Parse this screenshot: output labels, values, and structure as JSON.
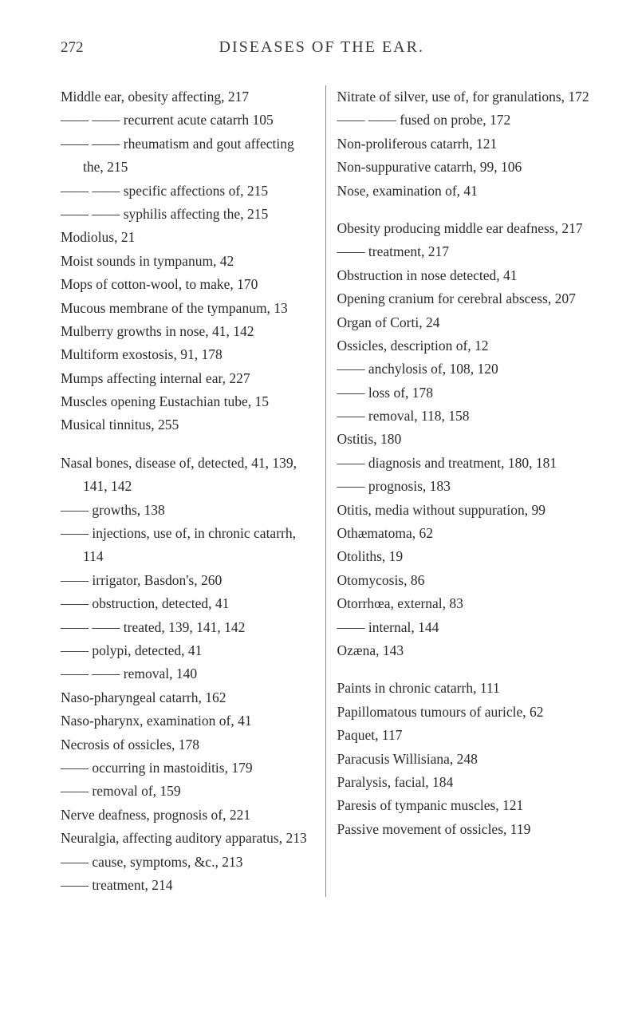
{
  "page_number": "272",
  "title": "DISEASES OF THE EAR.",
  "left_column": [
    {
      "text": "Middle ear, obesity affecting, 217"
    },
    {
      "text": "—— —— recurrent acute catarrh 105"
    },
    {
      "text": "—— —— rheumatism and gout affecting the, 215"
    },
    {
      "text": "—— —— specific affections of, 215"
    },
    {
      "text": "—— —— syphilis affecting the, 215"
    },
    {
      "text": "Modiolus, 21"
    },
    {
      "text": "Moist sounds in tympanum, 42"
    },
    {
      "text": "Mops of cotton-wool, to make, 170"
    },
    {
      "text": "Mucous membrane of the tympanum, 13"
    },
    {
      "text": "Mulberry growths in nose, 41, 142"
    },
    {
      "text": "Multiform exostosis, 91, 178"
    },
    {
      "text": "Mumps affecting internal ear, 227"
    },
    {
      "text": "Muscles opening Eustachian tube, 15"
    },
    {
      "text": "Musical tinnitus, 255"
    },
    {
      "spacer": true
    },
    {
      "text": "Nasal bones, disease of, detected, 41, 139, 141, 142"
    },
    {
      "text": "—— growths, 138"
    },
    {
      "text": "—— injections, use of, in chronic catarrh, 114"
    },
    {
      "text": "—— irrigator, Basdon's, 260"
    },
    {
      "text": "—— obstruction, detected, 41"
    },
    {
      "text": "—— —— treated, 139, 141, 142"
    },
    {
      "text": "—— polypi, detected, 41"
    },
    {
      "text": "—— —— removal, 140"
    },
    {
      "text": "Naso-pharyngeal catarrh, 162"
    },
    {
      "text": "Naso-pharynx, examination of, 41"
    },
    {
      "text": "Necrosis of ossicles, 178"
    },
    {
      "text": "—— occurring in mastoiditis, 179"
    },
    {
      "text": "—— removal of, 159"
    },
    {
      "text": "Nerve deafness, prognosis of, 221"
    },
    {
      "text": "Neuralgia, affecting auditory apparatus, 213"
    },
    {
      "text": "—— cause, symptoms, &c., 213"
    },
    {
      "text": "—— treatment, 214"
    }
  ],
  "right_column": [
    {
      "text": "Nitrate of silver, use of, for granulations, 172"
    },
    {
      "text": "—— —— fused on probe, 172"
    },
    {
      "text": "Non-proliferous catarrh, 121"
    },
    {
      "text": "Non-suppurative catarrh, 99, 106"
    },
    {
      "text": "Nose, examination of, 41"
    },
    {
      "spacer": true
    },
    {
      "text": "Obesity producing middle ear deafness, 217"
    },
    {
      "text": "—— treatment, 217"
    },
    {
      "text": "Obstruction in nose detected, 41"
    },
    {
      "text": "Opening cranium for cerebral abscess, 207"
    },
    {
      "text": "Organ of Corti, 24"
    },
    {
      "text": "Ossicles, description of, 12"
    },
    {
      "text": "—— anchylosis of, 108, 120"
    },
    {
      "text": "—— loss of, 178"
    },
    {
      "text": "—— removal, 118, 158"
    },
    {
      "text": "Ostitis, 180"
    },
    {
      "text": "—— diagnosis and treatment, 180, 181"
    },
    {
      "text": "—— prognosis, 183"
    },
    {
      "text": "Otitis, media without suppuration, 99"
    },
    {
      "text": "Othæmatoma, 62"
    },
    {
      "text": "Otoliths, 19"
    },
    {
      "text": "Otomycosis, 86"
    },
    {
      "text": "Otorrhœa, external, 83"
    },
    {
      "text": "—— internal, 144"
    },
    {
      "text": "Ozæna, 143"
    },
    {
      "spacer": true
    },
    {
      "text": "Paints in chronic catarrh, 111"
    },
    {
      "text": "Papillomatous tumours of auricle, 62"
    },
    {
      "text": "Paquet, 117"
    },
    {
      "text": "Paracusis Willisiana, 248"
    },
    {
      "text": "Paralysis, facial, 184"
    },
    {
      "text": "Paresis of tympanic muscles, 121"
    },
    {
      "text": "Passive movement of ossicles, 119"
    }
  ]
}
